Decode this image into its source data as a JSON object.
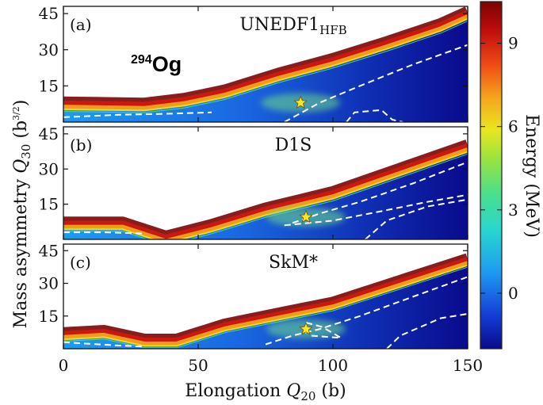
{
  "chart_data": {
    "type": "heatmap",
    "nucleus": {
      "mass": "294",
      "symbol": "Og"
    },
    "xlabel": {
      "main": "Elongation ",
      "var": "Q",
      "sub": "20",
      "unit": " (b)"
    },
    "ylabel": {
      "main": "Mass asymmetry ",
      "var": "Q",
      "sub": "30",
      "unit_pre": " (b",
      "unit_sup": "3/2",
      "unit_post": ")"
    },
    "xlim": [
      0,
      150
    ],
    "ylim": [
      0,
      48
    ],
    "x_ticks": [
      0,
      50,
      100,
      150
    ],
    "y_ticks": [
      15,
      30,
      45
    ],
    "colorbar": {
      "label": "Energy (MeV)",
      "range": [
        -2,
        10.5
      ],
      "ticks": [
        0,
        3,
        6,
        9
      ],
      "colors": [
        "#0a0a8c",
        "#1440d8",
        "#1e9bf0",
        "#27d6d0",
        "#4ce08a",
        "#9be43c",
        "#e8e620",
        "#f6a81c",
        "#ee4a14",
        "#bd0c0c",
        "#7a0404"
      ]
    },
    "panels": [
      {
        "tag": "(a)",
        "name": "UNEDF1",
        "name_sub": "HFB",
        "boundary": [
          [
            0,
            8
          ],
          [
            30,
            7.5
          ],
          [
            45,
            9.5
          ],
          [
            60,
            13
          ],
          [
            80,
            20
          ],
          [
            100,
            26
          ],
          [
            120,
            33
          ],
          [
            140,
            40.5
          ],
          [
            150,
            45.5
          ]
        ],
        "min_state": [
          88,
          8
        ],
        "contours": [
          [
            [
              0,
              2
            ],
            [
              20,
              3
            ],
            [
              40,
              3.5
            ],
            [
              55,
              4
            ]
          ],
          [
            [
              82,
              0
            ],
            [
              95,
              8
            ],
            [
              110,
              15
            ],
            [
              130,
              24
            ],
            [
              150,
              32
            ]
          ],
          [
            [
              105,
              0
            ],
            [
              108,
              4
            ],
            [
              118,
              5
            ],
            [
              122,
              1
            ],
            [
              126,
              0
            ]
          ]
        ]
      },
      {
        "tag": "(b)",
        "name": "D1S",
        "name_sub": "",
        "boundary": [
          [
            0,
            7
          ],
          [
            22,
            7
          ],
          [
            38,
            1
          ],
          [
            55,
            6
          ],
          [
            75,
            13
          ],
          [
            100,
            20
          ],
          [
            125,
            30
          ],
          [
            150,
            40
          ]
        ],
        "min_state": [
          90,
          9.5
        ],
        "contours": [
          [
            [
              0,
              3
            ],
            [
              15,
              3
            ],
            [
              30,
              2.5
            ]
          ],
          [
            [
              85,
              7
            ],
            [
              95,
              11
            ],
            [
              110,
              16
            ],
            [
              130,
              24
            ],
            [
              150,
              33
            ]
          ],
          [
            [
              82,
              6
            ],
            [
              100,
              8
            ],
            [
              118,
              12
            ],
            [
              135,
              16
            ],
            [
              150,
              19
            ]
          ],
          [
            [
              112,
              0
            ],
            [
              120,
              8
            ],
            [
              135,
              14
            ],
            [
              150,
              17
            ]
          ]
        ]
      },
      {
        "tag": "(c)",
        "name": "SkM*",
        "name_sub": "",
        "boundary": [
          [
            0,
            7
          ],
          [
            15,
            8
          ],
          [
            30,
            4
          ],
          [
            42,
            4
          ],
          [
            60,
            11
          ],
          [
            80,
            16
          ],
          [
            100,
            21
          ],
          [
            125,
            31
          ],
          [
            150,
            41
          ]
        ],
        "min_state": [
          90,
          9
        ],
        "contours": [
          [
            [
              0,
              3
            ],
            [
              20,
              1.5
            ],
            [
              30,
              1
            ]
          ],
          [
            [
              75,
              2
            ],
            [
              85,
              6
            ],
            [
              95,
              9
            ],
            [
              110,
              15
            ],
            [
              130,
              24
            ],
            [
              150,
              33
            ]
          ],
          [
            [
              92,
              6
            ],
            [
              103,
              5
            ],
            [
              96,
              10
            ],
            [
              90,
              12
            ]
          ],
          [
            [
              120,
              0
            ],
            [
              125,
              6
            ],
            [
              140,
              14
            ],
            [
              150,
              16
            ]
          ]
        ]
      }
    ]
  }
}
